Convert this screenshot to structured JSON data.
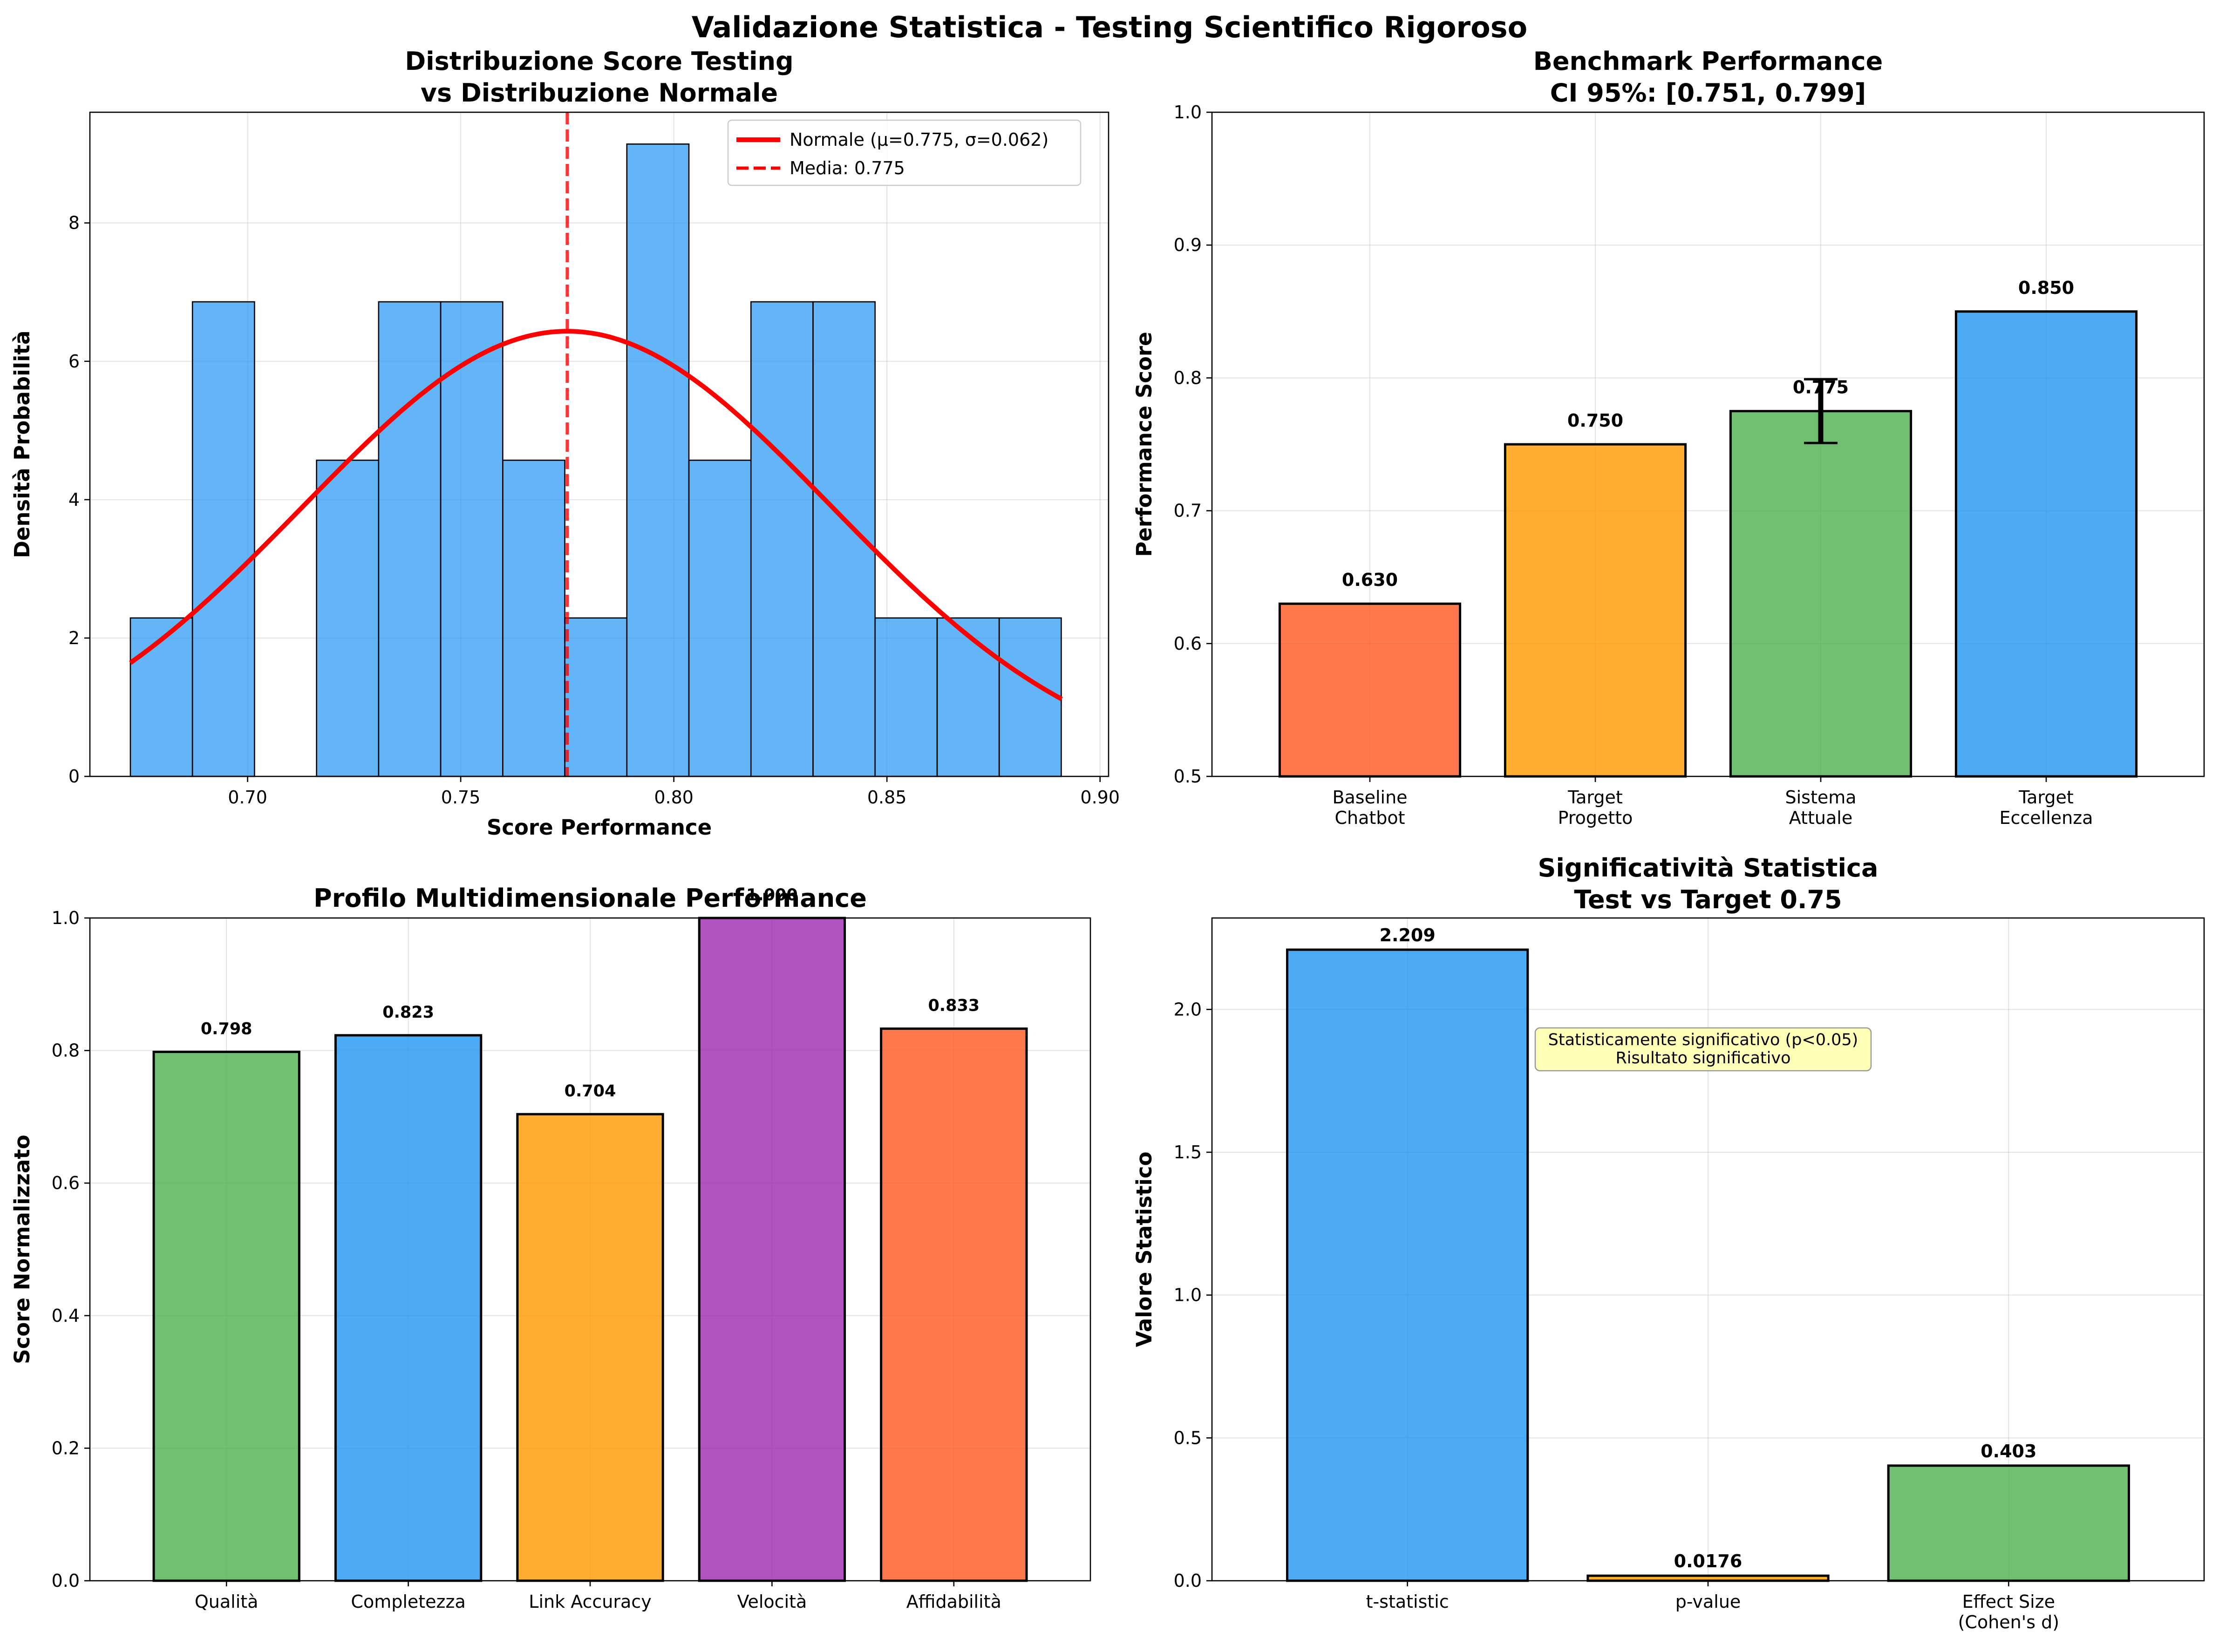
{
  "figure": {
    "suptitle": "Validazione Statistica - Testing Scientifico Rigoroso"
  },
  "chart_data": [
    {
      "type": "histogram",
      "title_lines": [
        "Distribuzione Score Testing",
        "vs Distribuzione Normale"
      ],
      "xlabel": "Score Performance",
      "ylabel": "Densità Probabilità",
      "xlim": [
        0.663,
        0.902
      ],
      "ylim": [
        0,
        9.6
      ],
      "xticks": [
        0.7,
        0.75,
        0.8,
        0.85,
        0.9
      ],
      "xtick_labels": [
        "0.70",
        "0.75",
        "0.80",
        "0.85",
        "0.90"
      ],
      "yticks": [
        0,
        2,
        4,
        6,
        8
      ],
      "ytick_labels": [
        "0",
        "2",
        "4",
        "6",
        "8"
      ],
      "bin_start": 0.6725,
      "bin_width": 0.01456,
      "bin_density": [
        2.29,
        6.86,
        0,
        4.57,
        6.86,
        6.86,
        4.57,
        2.29,
        9.14,
        4.57,
        6.86,
        6.86,
        2.29,
        2.29,
        2.29
      ],
      "normal_curve": {
        "mu": 0.775,
        "sigma": 0.062,
        "x_range": [
          0.6725,
          0.891
        ],
        "color": "#ff0000"
      },
      "mean_line": {
        "x": 0.775,
        "color": "#ff0000"
      },
      "bar_color": "#2196f3",
      "legend": {
        "position": "top-right",
        "entries": [
          "Normale (μ=0.775, σ=0.062)",
          "Media: 0.775"
        ]
      },
      "grid": true
    },
    {
      "type": "bar",
      "title_lines": [
        "Benchmark Performance",
        "CI 95%: [0.751, 0.799]"
      ],
      "xlabel": "",
      "ylabel": "Performance Score",
      "ylim": [
        0.5,
        1.0
      ],
      "yticks": [
        0.5,
        0.6,
        0.7,
        0.8,
        0.9,
        1.0
      ],
      "ytick_labels": [
        "0.5",
        "0.6",
        "0.7",
        "0.8",
        "0.9",
        "1.0"
      ],
      "categories": [
        [
          "Baseline",
          "Chatbot"
        ],
        [
          "Target",
          "Progetto"
        ],
        [
          "Sistema",
          "Attuale"
        ],
        [
          "Target",
          "Eccellenza"
        ]
      ],
      "values": [
        0.63,
        0.75,
        0.775,
        0.85
      ],
      "value_labels": [
        "0.630",
        "0.750",
        "0.775",
        "0.850"
      ],
      "colors": [
        "#ff5722",
        "#ff9800",
        "#4caf50",
        "#2196f3"
      ],
      "error_bar": {
        "index": 2,
        "low": 0.751,
        "high": 0.799
      },
      "grid": true
    },
    {
      "type": "bar",
      "title_lines": [
        "Profilo Multidimensionale Performance"
      ],
      "xlabel": "",
      "ylabel": "Score Normalizzato",
      "ylim": [
        0,
        1.0
      ],
      "yticks": [
        0,
        0.2,
        0.4,
        0.6,
        0.8,
        1.0
      ],
      "ytick_labels": [
        "0.0",
        "0.2",
        "0.4",
        "0.6",
        "0.8",
        "1.0"
      ],
      "categories": [
        [
          "Qualità"
        ],
        [
          "Completezza"
        ],
        [
          "Link Accuracy"
        ],
        [
          "Velocità"
        ],
        [
          "Affidabilità"
        ]
      ],
      "values": [
        0.798,
        0.823,
        0.704,
        1.0,
        0.833
      ],
      "value_labels": [
        "0.798",
        "0.823",
        "0.704",
        "1.000",
        "0.833"
      ],
      "colors": [
        "#4caf50",
        "#2196f3",
        "#ff9800",
        "#9c27b0",
        "#ff5722"
      ],
      "grid": true
    },
    {
      "type": "bar",
      "title_lines": [
        "Significatività Statistica",
        "Test vs Target 0.75"
      ],
      "xlabel": "",
      "ylabel": "Valore Statistico",
      "ylim": [
        0,
        2.32
      ],
      "yticks": [
        0,
        0.5,
        1.0,
        1.5,
        2.0
      ],
      "ytick_labels": [
        "0.0",
        "0.5",
        "1.0",
        "1.5",
        "2.0"
      ],
      "categories": [
        [
          "t-statistic"
        ],
        [
          "p-value"
        ],
        [
          "Effect Size",
          "(Cohen's d)"
        ]
      ],
      "values": [
        2.209,
        0.0176,
        0.403
      ],
      "value_labels": [
        "2.209",
        "0.0176",
        "0.403"
      ],
      "colors": [
        "#2196f3",
        "#ff9800",
        "#4caf50"
      ],
      "annotation": {
        "lines": [
          "Statisticamente significativo (p<0.05)",
          "Risultato significativo"
        ],
        "bg": "#ffffb0"
      },
      "grid": true
    }
  ]
}
